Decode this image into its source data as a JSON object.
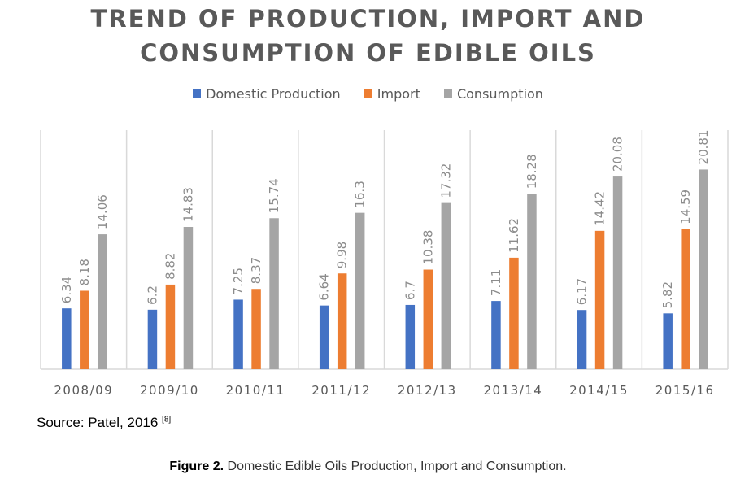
{
  "chart_data": {
    "type": "bar",
    "title_lines": [
      "TREND OF PRODUCTION, IMPORT AND",
      "CONSUMPTION OF EDIBLE OILS"
    ],
    "categories": [
      "2008/09",
      "2009/10",
      "2010/11",
      "2011/12",
      "2012/13",
      "2013/14",
      "2014/15",
      "2015/16"
    ],
    "series": [
      {
        "name": "Domestic Production",
        "color": "#4472c4",
        "values": [
          6.34,
          6.2,
          7.25,
          6.64,
          6.7,
          7.11,
          6.17,
          5.82
        ]
      },
      {
        "name": "Import",
        "color": "#ed7d31",
        "values": [
          8.18,
          8.82,
          8.37,
          9.98,
          10.38,
          11.62,
          14.42,
          14.59
        ]
      },
      {
        "name": "Consumption",
        "color": "#a5a5a5",
        "values": [
          14.06,
          14.83,
          15.74,
          16.3,
          17.32,
          18.28,
          20.08,
          20.81
        ]
      }
    ],
    "value_labels": {
      "Domestic Production": [
        "6.34",
        "6.2",
        "7.25",
        "6.64",
        "6.7",
        "7.11",
        "6.17",
        "5.82"
      ],
      "Import": [
        "8.18",
        "8.82",
        "8.37",
        "9.98",
        "10.38",
        "11.62",
        "14.42",
        "14.59"
      ],
      "Consumption": [
        "14.06",
        "14.83",
        "15.74",
        "16.3",
        "17.32",
        "18.28",
        "20.08",
        "20.81"
      ]
    },
    "xlabel": "",
    "ylabel": "",
    "ylim": [
      0,
      25
    ],
    "y_axis_visible": false,
    "grid": "vertical category separators",
    "legend_position": "top-center",
    "data_labels": "rotated vertical above bars"
  },
  "title": {
    "line1": "TREND OF PRODUCTION, IMPORT AND",
    "line2": "CONSUMPTION OF EDIBLE OILS"
  },
  "legend": [
    {
      "label": "Domestic Production",
      "color": "#4472c4"
    },
    {
      "label": "Import",
      "color": "#ed7d31"
    },
    {
      "label": "Consumption",
      "color": "#a5a5a5"
    }
  ],
  "source": {
    "text": "Source: Patel, 2016 ",
    "ref": "[8]"
  },
  "caption": {
    "label": "Figure 2.",
    "text": " Domestic Edible Oils Production, Import and Consumption."
  }
}
